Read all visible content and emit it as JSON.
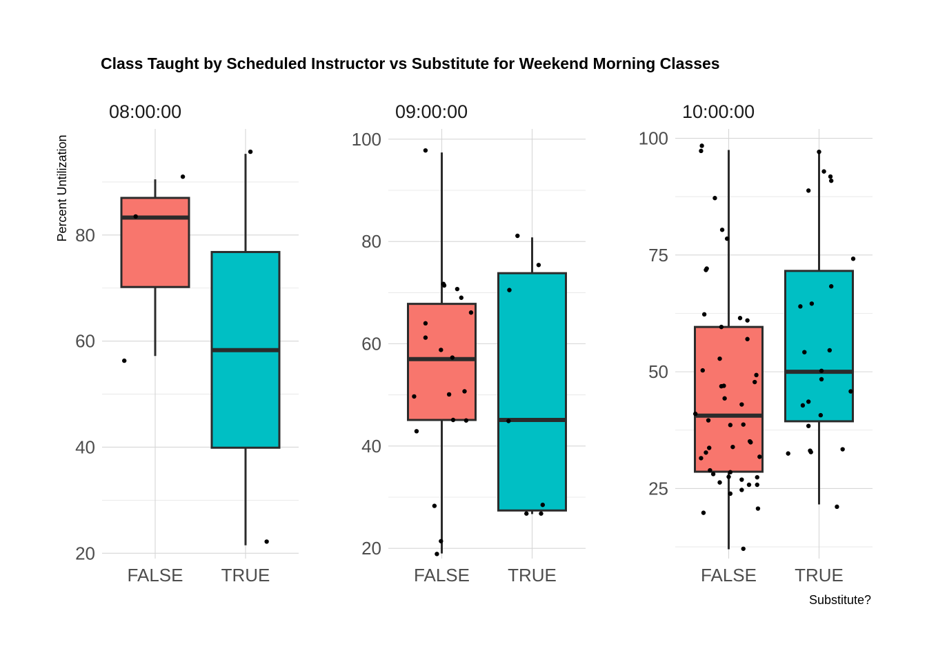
{
  "chart_data": {
    "type": "boxplot",
    "title": "Class Taught by Scheduled Instructor vs Substitute for Weekend Morning Classes",
    "xlabel": "Substitute?",
    "ylabel": "Percent Untilization",
    "categories": [
      "FALSE",
      "TRUE"
    ],
    "colors": {
      "FALSE": "#F8766D",
      "TRUE": "#00BFC4"
    },
    "facets": [
      {
        "label": "08:00:00",
        "ylim": [
          19,
          100
        ],
        "yticks": [
          20,
          40,
          60,
          80
        ],
        "boxes": [
          {
            "category": "FALSE",
            "q1": 70.2,
            "median": 83.3,
            "q3": 87.0,
            "whisker_low": 57.2,
            "whisker_high": 90.5
          },
          {
            "category": "TRUE",
            "q1": 39.9,
            "median": 58.3,
            "q3": 76.8,
            "whisker_low": 21.5,
            "whisker_high": 95.3
          }
        ],
        "points": [
          {
            "category": "FALSE",
            "y": 91.0,
            "jitter": 0.34
          },
          {
            "category": "FALSE",
            "y": 83.5,
            "jitter": -0.24
          },
          {
            "category": "FALSE",
            "y": 56.3,
            "jitter": -0.38
          },
          {
            "category": "TRUE",
            "y": 95.7,
            "jitter": 0.06
          },
          {
            "category": "TRUE",
            "y": 22.2,
            "jitter": 0.26
          }
        ]
      },
      {
        "label": "09:00:00",
        "ylim": [
          18,
          102
        ],
        "yticks": [
          20,
          40,
          60,
          80,
          100
        ],
        "boxes": [
          {
            "category": "FALSE",
            "q1": 45.1,
            "median": 57.0,
            "q3": 67.8,
            "whisker_low": 19.0,
            "whisker_high": 97.4
          },
          {
            "category": "TRUE",
            "q1": 27.4,
            "median": 45.1,
            "q3": 73.8,
            "whisker_low": 26.7,
            "whisker_high": 80.8
          }
        ],
        "points": [
          {
            "category": "FALSE",
            "y": 97.8,
            "jitter": -0.2
          },
          {
            "category": "FALSE",
            "y": 71.7,
            "jitter": 0.02
          },
          {
            "category": "FALSE",
            "y": 71.4,
            "jitter": 0.03
          },
          {
            "category": "FALSE",
            "y": 70.7,
            "jitter": 0.19
          },
          {
            "category": "FALSE",
            "y": 69.0,
            "jitter": 0.24
          },
          {
            "category": "FALSE",
            "y": 66.1,
            "jitter": 0.36
          },
          {
            "category": "FALSE",
            "y": 64.0,
            "jitter": -0.2
          },
          {
            "category": "FALSE",
            "y": 61.2,
            "jitter": -0.2
          },
          {
            "category": "FALSE",
            "y": 58.8,
            "jitter": -0.01
          },
          {
            "category": "FALSE",
            "y": 57.3,
            "jitter": 0.13
          },
          {
            "category": "FALSE",
            "y": 50.7,
            "jitter": 0.28
          },
          {
            "category": "FALSE",
            "y": 50.1,
            "jitter": 0.09
          },
          {
            "category": "FALSE",
            "y": 49.7,
            "jitter": -0.34
          },
          {
            "category": "FALSE",
            "y": 45.1,
            "jitter": 0.14
          },
          {
            "category": "FALSE",
            "y": 45.0,
            "jitter": 0.3
          },
          {
            "category": "FALSE",
            "y": 42.9,
            "jitter": -0.31
          },
          {
            "category": "FALSE",
            "y": 28.3,
            "jitter": -0.09
          },
          {
            "category": "FALSE",
            "y": 21.4,
            "jitter": -0.01
          },
          {
            "category": "FALSE",
            "y": 18.9,
            "jitter": -0.06
          },
          {
            "category": "TRUE",
            "y": 81.1,
            "jitter": -0.18
          },
          {
            "category": "TRUE",
            "y": 75.4,
            "jitter": 0.08
          },
          {
            "category": "TRUE",
            "y": 70.5,
            "jitter": -0.28
          },
          {
            "category": "TRUE",
            "y": 44.9,
            "jitter": -0.29
          },
          {
            "category": "TRUE",
            "y": 28.5,
            "jitter": 0.13
          },
          {
            "category": "TRUE",
            "y": 26.8,
            "jitter": -0.07
          },
          {
            "category": "TRUE",
            "y": 26.8,
            "jitter": 0.11
          }
        ]
      },
      {
        "label": "10:00:00",
        "ylim": [
          10,
          102
        ],
        "yticks": [
          25,
          50,
          75,
          100
        ],
        "boxes": [
          {
            "category": "FALSE",
            "q1": 28.6,
            "median": 40.6,
            "q3": 59.6,
            "whisker_low": 12.0,
            "whisker_high": 97.5
          },
          {
            "category": "TRUE",
            "q1": 39.4,
            "median": 50.0,
            "q3": 71.6,
            "whisker_low": 21.6,
            "whisker_high": 97.3
          }
        ],
        "points": [
          {
            "category": "FALSE",
            "y": 98.4,
            "jitter": -0.33
          },
          {
            "category": "FALSE",
            "y": 97.3,
            "jitter": -0.34
          },
          {
            "category": "FALSE",
            "y": 87.2,
            "jitter": -0.17
          },
          {
            "category": "FALSE",
            "y": 80.4,
            "jitter": -0.08
          },
          {
            "category": "FALSE",
            "y": 78.5,
            "jitter": -0.02
          },
          {
            "category": "FALSE",
            "y": 72.1,
            "jitter": -0.27
          },
          {
            "category": "FALSE",
            "y": 71.8,
            "jitter": -0.28
          },
          {
            "category": "FALSE",
            "y": 62.3,
            "jitter": -0.3
          },
          {
            "category": "FALSE",
            "y": 61.5,
            "jitter": 0.14
          },
          {
            "category": "FALSE",
            "y": 61.0,
            "jitter": 0.23
          },
          {
            "category": "FALSE",
            "y": 59.6,
            "jitter": -0.09
          },
          {
            "category": "FALSE",
            "y": 57.0,
            "jitter": 0.23
          },
          {
            "category": "FALSE",
            "y": 52.8,
            "jitter": -0.11
          },
          {
            "category": "FALSE",
            "y": 50.3,
            "jitter": -0.32
          },
          {
            "category": "FALSE",
            "y": 49.3,
            "jitter": 0.34
          },
          {
            "category": "FALSE",
            "y": 47.8,
            "jitter": 0.32
          },
          {
            "category": "FALSE",
            "y": 47.0,
            "jitter": -0.06
          },
          {
            "category": "FALSE",
            "y": 46.9,
            "jitter": -0.09
          },
          {
            "category": "FALSE",
            "y": 44.3,
            "jitter": -0.05
          },
          {
            "category": "FALSE",
            "y": 43.0,
            "jitter": 0.16
          },
          {
            "category": "FALSE",
            "y": 41.0,
            "jitter": -0.41
          },
          {
            "category": "FALSE",
            "y": 39.6,
            "jitter": -0.25
          },
          {
            "category": "FALSE",
            "y": 38.7,
            "jitter": 0.18
          },
          {
            "category": "FALSE",
            "y": 38.6,
            "jitter": 0.02
          },
          {
            "category": "FALSE",
            "y": 35.1,
            "jitter": 0.26
          },
          {
            "category": "FALSE",
            "y": 34.9,
            "jitter": 0.27
          },
          {
            "category": "FALSE",
            "y": 33.9,
            "jitter": 0.05
          },
          {
            "category": "FALSE",
            "y": 33.7,
            "jitter": -0.24
          },
          {
            "category": "FALSE",
            "y": 32.7,
            "jitter": -0.28
          },
          {
            "category": "FALSE",
            "y": 31.8,
            "jitter": 0.38
          },
          {
            "category": "FALSE",
            "y": 31.5,
            "jitter": -0.34
          },
          {
            "category": "FALSE",
            "y": 28.9,
            "jitter": -0.23
          },
          {
            "category": "FALSE",
            "y": 28.5,
            "jitter": 0.02
          },
          {
            "category": "FALSE",
            "y": 28.1,
            "jitter": -0.19
          },
          {
            "category": "FALSE",
            "y": 27.5,
            "jitter": 0.0
          },
          {
            "category": "FALSE",
            "y": 27.4,
            "jitter": 0.35
          },
          {
            "category": "FALSE",
            "y": 26.9,
            "jitter": 0.16
          },
          {
            "category": "FALSE",
            "y": 26.3,
            "jitter": -0.11
          },
          {
            "category": "FALSE",
            "y": 25.8,
            "jitter": 0.35
          },
          {
            "category": "FALSE",
            "y": 25.8,
            "jitter": 0.25
          },
          {
            "category": "FALSE",
            "y": 24.7,
            "jitter": 0.16
          },
          {
            "category": "FALSE",
            "y": 23.9,
            "jitter": 0.02
          },
          {
            "category": "FALSE",
            "y": 20.7,
            "jitter": 0.36
          },
          {
            "category": "FALSE",
            "y": 19.8,
            "jitter": -0.31
          },
          {
            "category": "FALSE",
            "y": 12.1,
            "jitter": 0.18
          },
          {
            "category": "TRUE",
            "y": 97.1,
            "jitter": 0.0
          },
          {
            "category": "TRUE",
            "y": 92.9,
            "jitter": 0.06
          },
          {
            "category": "TRUE",
            "y": 91.8,
            "jitter": 0.14
          },
          {
            "category": "TRUE",
            "y": 90.9,
            "jitter": 0.15
          },
          {
            "category": "TRUE",
            "y": 88.8,
            "jitter": -0.13
          },
          {
            "category": "TRUE",
            "y": 74.2,
            "jitter": 0.42
          },
          {
            "category": "TRUE",
            "y": 68.3,
            "jitter": 0.15
          },
          {
            "category": "TRUE",
            "y": 64.6,
            "jitter": -0.09
          },
          {
            "category": "TRUE",
            "y": 64.0,
            "jitter": -0.23
          },
          {
            "category": "TRUE",
            "y": 54.6,
            "jitter": 0.13
          },
          {
            "category": "TRUE",
            "y": 54.2,
            "jitter": -0.18
          },
          {
            "category": "TRUE",
            "y": 50.2,
            "jitter": 0.03
          },
          {
            "category": "TRUE",
            "y": 48.4,
            "jitter": 0.03
          },
          {
            "category": "TRUE",
            "y": 45.8,
            "jitter": 0.39
          },
          {
            "category": "TRUE",
            "y": 43.6,
            "jitter": -0.13
          },
          {
            "category": "TRUE",
            "y": 42.8,
            "jitter": -0.2
          },
          {
            "category": "TRUE",
            "y": 40.7,
            "jitter": 0.02
          },
          {
            "category": "TRUE",
            "y": 38.4,
            "jitter": -0.13
          },
          {
            "category": "TRUE",
            "y": 33.4,
            "jitter": 0.29
          },
          {
            "category": "TRUE",
            "y": 33.1,
            "jitter": -0.11
          },
          {
            "category": "TRUE",
            "y": 32.8,
            "jitter": -0.1
          },
          {
            "category": "TRUE",
            "y": 32.5,
            "jitter": -0.38
          },
          {
            "category": "TRUE",
            "y": 21.1,
            "jitter": 0.22
          }
        ]
      }
    ]
  }
}
